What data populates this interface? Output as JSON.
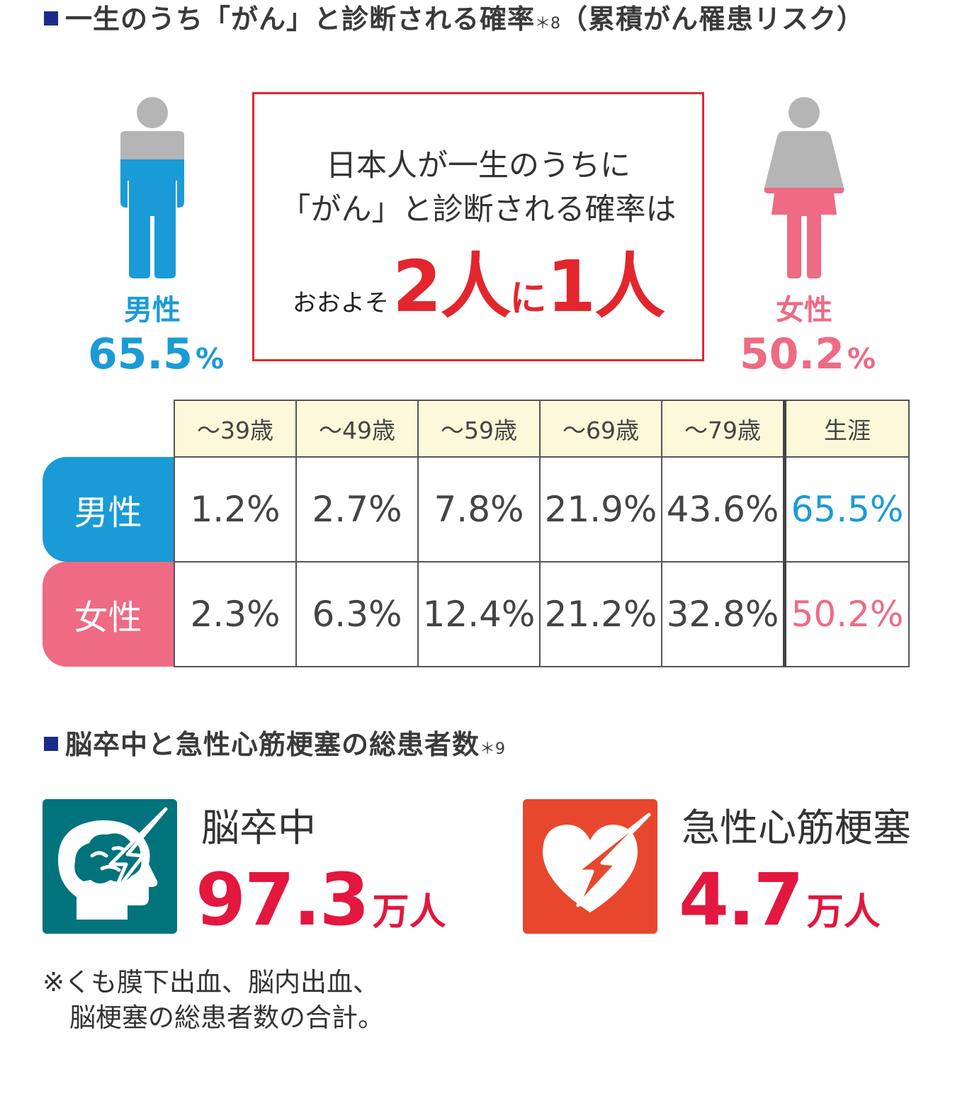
{
  "section1": {
    "title": "一生のうち「がん」と診断される確率",
    "note": "＊8",
    "title_suffix": "（累積がん罹患リスク）"
  },
  "male": {
    "label": "男性",
    "percent": "65.5",
    "unit": "%",
    "color": "#1a9bd7"
  },
  "female": {
    "label": "女性",
    "percent": "50.2",
    "unit": "%",
    "color": "#ef6a83"
  },
  "callout": {
    "line1": "日本人が一生のうちに",
    "line2": "「がん」と診断される確率は",
    "prefix": "おおよそ",
    "n1": "2人",
    "mid": "に",
    "n2": "1人"
  },
  "table": {
    "headers": [
      "～39歳",
      "～49歳",
      "～59歳",
      "～69歳",
      "～79歳",
      "生涯"
    ],
    "rows": [
      {
        "label": "男性",
        "values": [
          "1.2%",
          "2.7%",
          "7.8%",
          "21.9%",
          "43.6%",
          "65.5%"
        ]
      },
      {
        "label": "女性",
        "values": [
          "2.3%",
          "6.3%",
          "12.4%",
          "21.2%",
          "32.8%",
          "50.2%"
        ]
      }
    ]
  },
  "section2": {
    "title": "脳卒中と急性心筋梗塞の総患者数",
    "note": "＊9"
  },
  "stroke": {
    "label": "脳卒中",
    "value": "97.3",
    "unit": "万人",
    "icon": "brain-lightning-icon",
    "icon_color": "#00737d"
  },
  "mi": {
    "label": "急性心筋梗塞",
    "value": "4.7",
    "unit": "万人",
    "icon": "heart-lightning-icon",
    "icon_color": "#e8472d"
  },
  "footnote": {
    "line1": "※くも膜下出血、脳内出血、",
    "line2": "脳梗塞の総患者数の合計。"
  }
}
